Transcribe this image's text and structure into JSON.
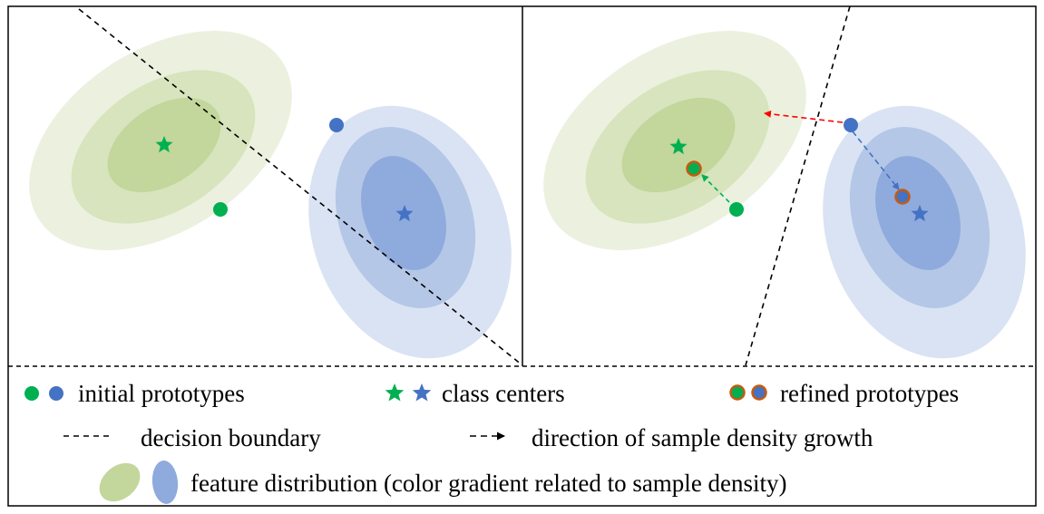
{
  "legend": {
    "initial_prototypes": "initial prototypes",
    "class_centers": "class centers",
    "refined_prototypes": "refined prototypes",
    "decision_boundary": "decision boundary",
    "direction": "direction of sample density growth",
    "feature_distribution": "feature distribution (color gradient related to sample density)"
  },
  "colors": {
    "green_point": "#00b050",
    "blue_point": "#4472c4",
    "refined_outline": "#c55a11",
    "green_dist_outer": "#ebf1de",
    "green_dist_mid": "#d7e4bd",
    "green_dist_inner": "#c3d69b",
    "blue_dist_outer": "#dae3f3",
    "blue_dist_mid": "#b4c7e7",
    "blue_dist_inner": "#8faadc",
    "red_arrow": "#ff0000"
  }
}
